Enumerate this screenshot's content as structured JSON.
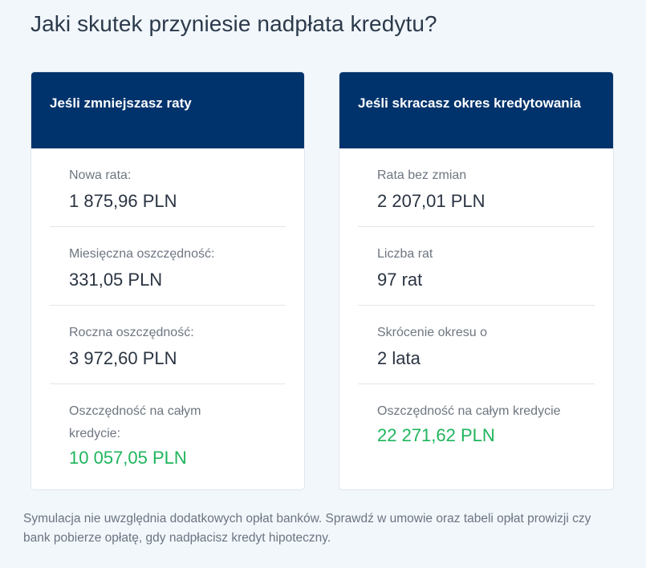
{
  "page": {
    "title": "Jaki skutek przyniesie nadpłata kredytu?"
  },
  "cards": [
    {
      "header": "Jeśli zmniejszasz raty",
      "rows": [
        {
          "label": "Nowa rata:",
          "value": "1 875,96 PLN"
        },
        {
          "label": "Miesięczna oszczędność:",
          "value": "331,05 PLN"
        },
        {
          "label": "Roczna oszczędność:",
          "value": "3 972,60 PLN"
        },
        {
          "label": "Oszczędność na całym kredycie:",
          "value": "10 057,05 PLN"
        }
      ]
    },
    {
      "header": "Jeśli skracasz okres kredytowania",
      "rows": [
        {
          "label": "Rata bez zmian",
          "value": "2 207,01 PLN"
        },
        {
          "label": "Liczba rat",
          "value": "97 rat"
        },
        {
          "label": "Skrócenie okresu o",
          "value": "2 lata"
        },
        {
          "label": "Oszczędność na całym kredycie",
          "value": "22 271,62 PLN"
        }
      ]
    }
  ],
  "footnote": "Symulacja nie uwzględnia dodatkowych opłat banków. Sprawdź w umowie oraz tabeli opłat prowizji czy bank pobierze opłatę, gdy nadpłacisz kredyt hipoteczny.",
  "colors": {
    "header_bg": "#00336c",
    "highlight_green": "#1fb55c",
    "page_bg": "#f2f7fc"
  }
}
